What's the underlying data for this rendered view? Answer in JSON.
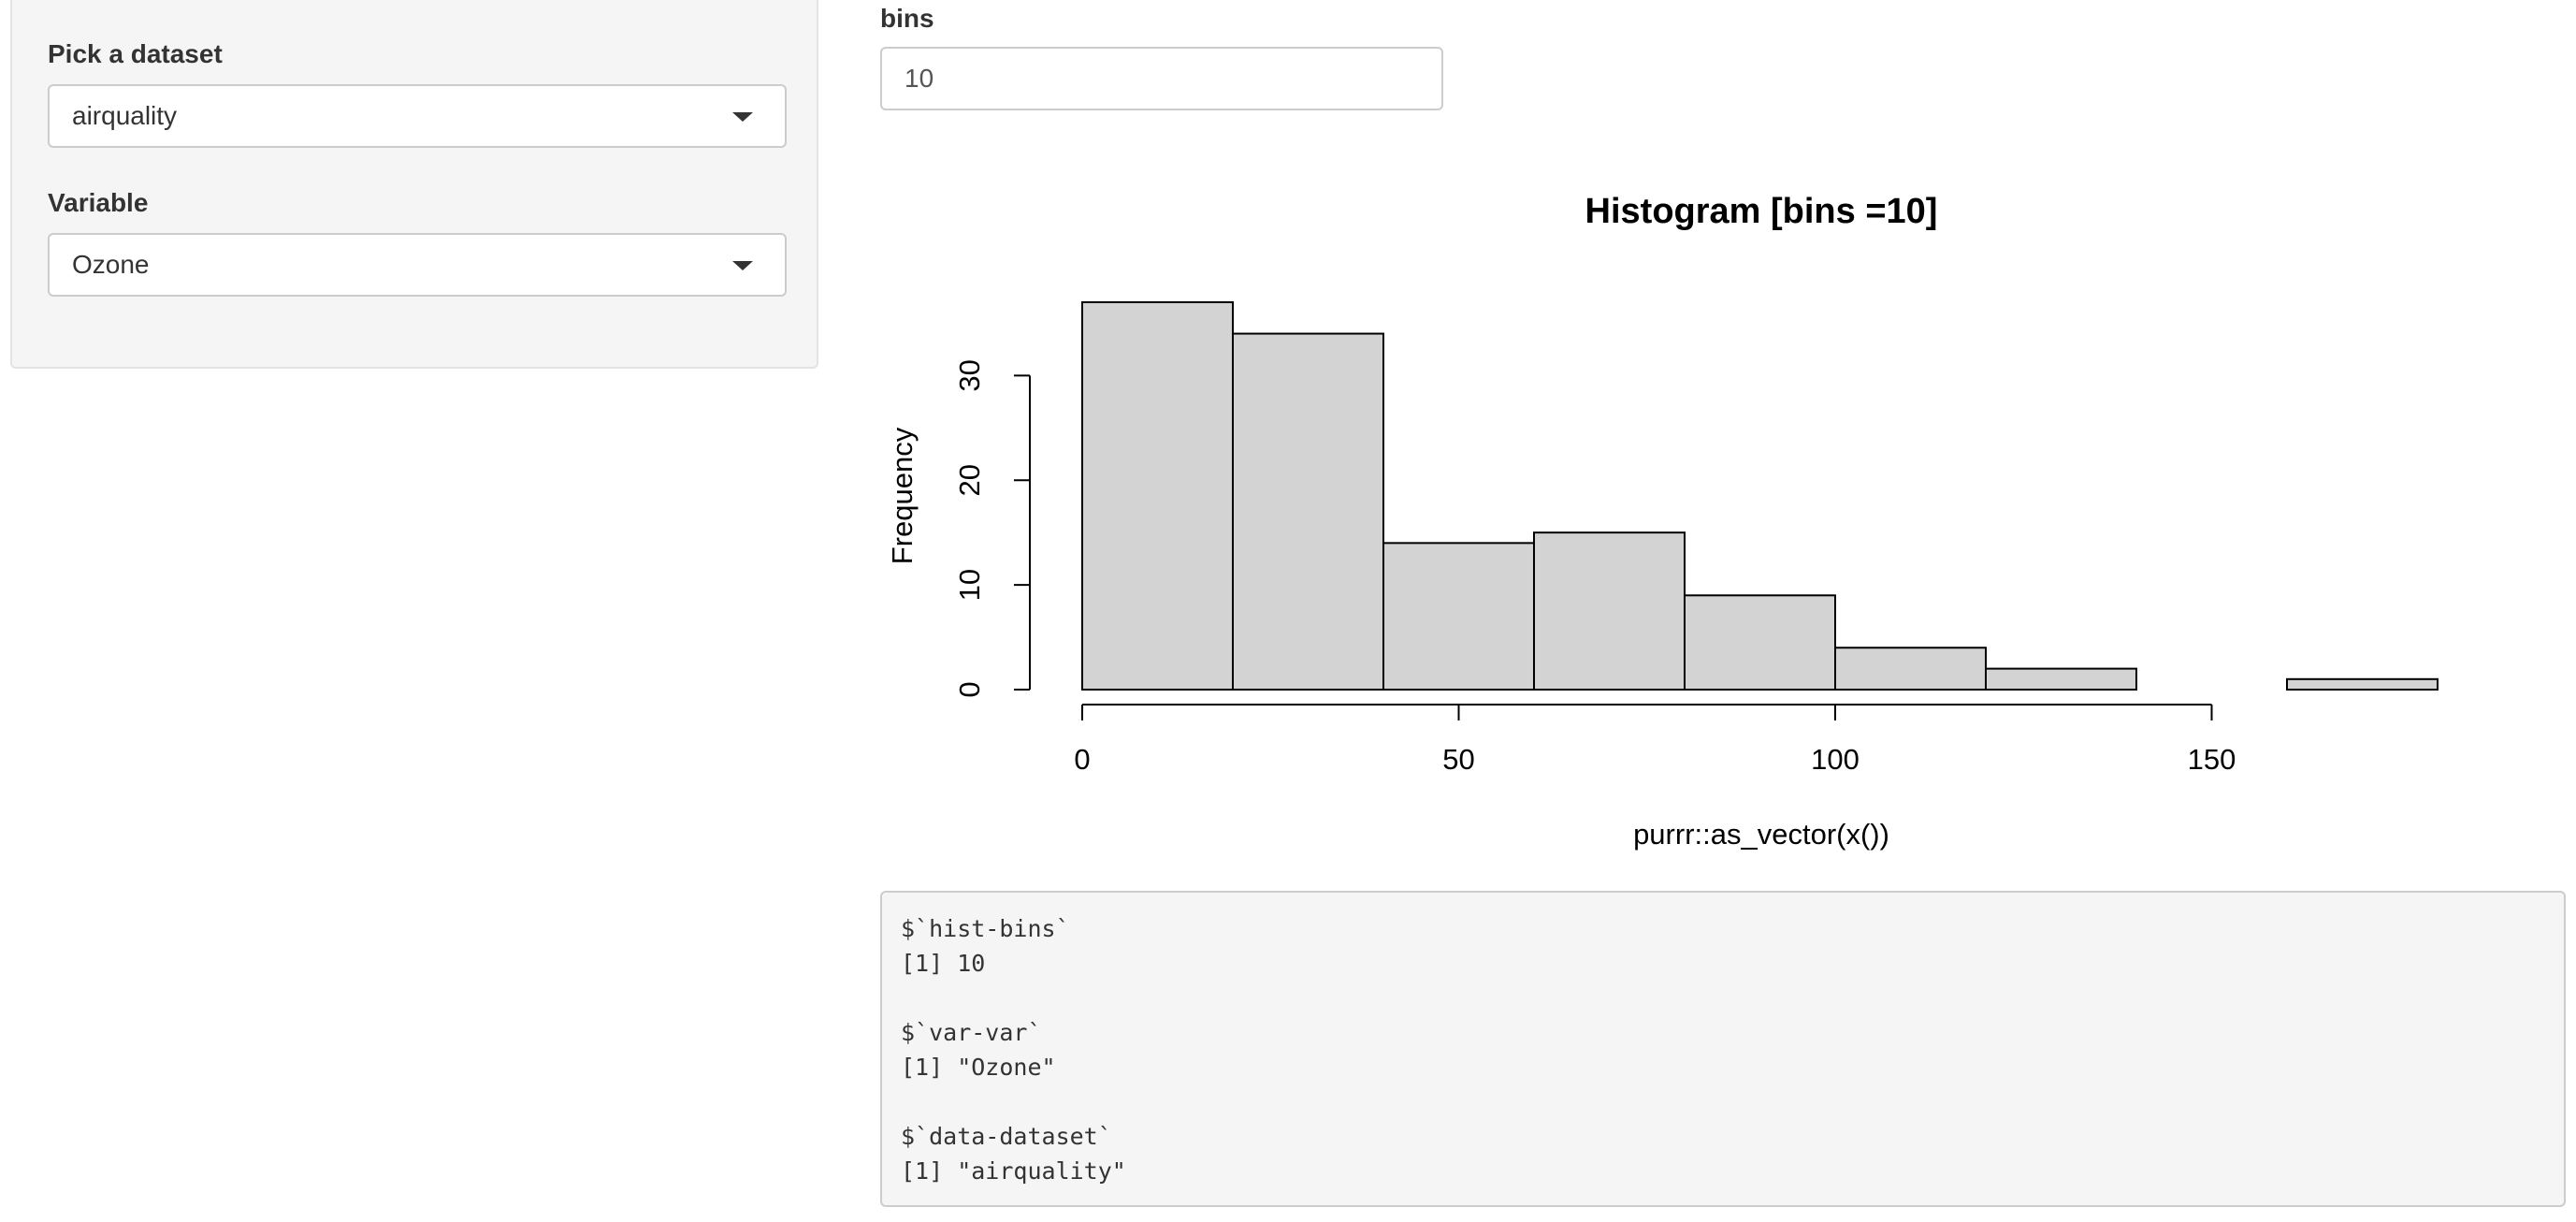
{
  "sidebar": {
    "dataset_label": "Pick a dataset",
    "dataset_value": "airquality",
    "variable_label": "Variable",
    "variable_value": "Ozone"
  },
  "bins": {
    "label": "bins",
    "value": "10"
  },
  "chart_data": {
    "type": "bar",
    "title": "Histogram [bins =10]",
    "xlabel": "purrr::as_vector(x())",
    "ylabel": "Frequency",
    "bin_edges": [
      0,
      20,
      40,
      60,
      80,
      100,
      120,
      140,
      160,
      180
    ],
    "values": [
      37,
      34,
      14,
      15,
      9,
      4,
      2,
      0,
      1
    ],
    "xlim": [
      0,
      180
    ],
    "ylim": [
      0,
      37
    ],
    "x_ticks": [
      "0",
      "50",
      "100",
      "150"
    ],
    "y_ticks": [
      "0",
      "10",
      "20",
      "30"
    ],
    "bar_fill": "#d3d3d3",
    "grid": false
  },
  "console": {
    "lines": [
      "$`hist-bins`",
      "[1] 10",
      "",
      "$`var-var`",
      "[1] \"Ozone\"",
      "",
      "$`data-dataset`",
      "[1] \"airquality\""
    ]
  }
}
